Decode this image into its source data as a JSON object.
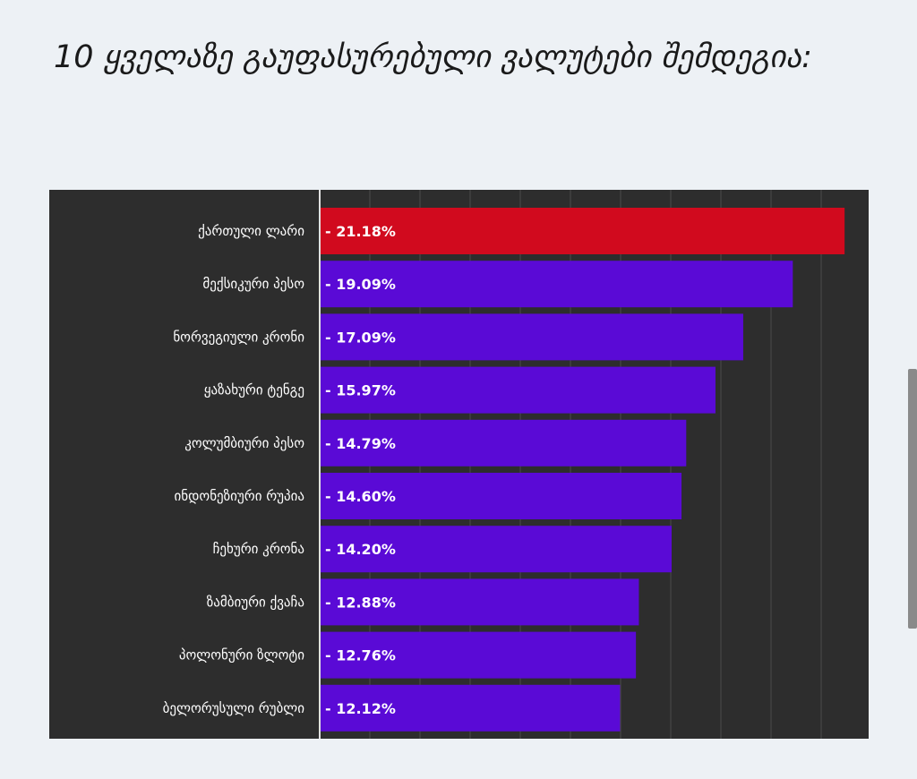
{
  "title": "10 ყველაზე გაუფასურებული ვალუტები შემდეგია:",
  "colors": {
    "highlight": "#d10a1e",
    "bar": "#5a0ad6",
    "panel": "#2d2d2d",
    "grid": "#4a4a4a",
    "axis": "#e0e0e0"
  },
  "chart_data": {
    "type": "bar",
    "orientation": "horizontal",
    "title": "",
    "xlabel": "",
    "ylabel": "",
    "xlim": [
      0,
      21.5
    ],
    "grid": true,
    "categories": [
      "ქართული ლარი",
      "მექსიკური პესო",
      "ნორვეგიული კრონი",
      "ყაზახური ტენგე",
      "კოლუმბიური პესო",
      "ინდონეზიური რუპია",
      "ჩეხური კრონა",
      "ზამბიური ქვაჩა",
      "პოლონური ზლოტი",
      "ბელორუსული რუბლი"
    ],
    "values": [
      21.18,
      19.09,
      17.09,
      15.97,
      14.79,
      14.6,
      14.2,
      12.88,
      12.76,
      12.12
    ],
    "value_labels": [
      "- 21.18%",
      "- 19.09%",
      "- 17.09%",
      "- 15.97%",
      "- 14.79%",
      "- 14.60%",
      "- 14.20%",
      "- 12.88%",
      "- 12.76%",
      "- 12.12%"
    ],
    "highlight_index": 0
  }
}
